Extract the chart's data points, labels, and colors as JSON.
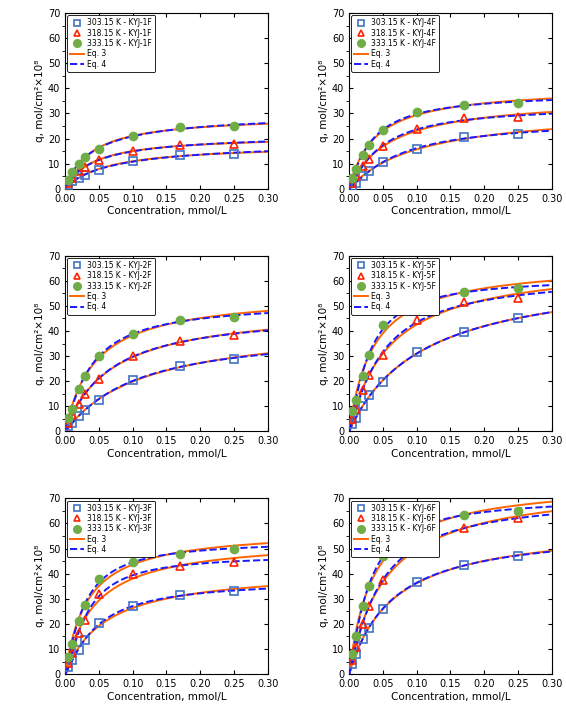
{
  "panels": [
    {
      "label": "KYJ-1F",
      "T303_x": [
        0.005,
        0.01,
        0.02,
        0.03,
        0.05,
        0.1,
        0.17,
        0.25
      ],
      "T303_y": [
        1.5,
        3.0,
        4.5,
        5.5,
        7.5,
        11.0,
        13.5,
        14.0
      ],
      "T318_x": [
        0.005,
        0.01,
        0.02,
        0.03,
        0.05,
        0.1,
        0.17,
        0.25
      ],
      "T318_y": [
        2.5,
        4.5,
        7.0,
        8.5,
        11.5,
        15.0,
        17.5,
        18.0
      ],
      "T333_x": [
        0.005,
        0.01,
        0.02,
        0.03,
        0.05,
        0.1,
        0.17,
        0.25
      ],
      "T333_y": [
        3.5,
        6.5,
        10.0,
        12.5,
        16.0,
        21.0,
        24.5,
        25.0
      ],
      "ylim": [
        0,
        70
      ]
    },
    {
      "label": "KYJ-4F",
      "T303_x": [
        0.005,
        0.01,
        0.02,
        0.03,
        0.05,
        0.1,
        0.17,
        0.25
      ],
      "T303_y": [
        1.0,
        2.5,
        5.0,
        7.0,
        10.5,
        16.0,
        20.5,
        22.0
      ],
      "T318_x": [
        0.005,
        0.01,
        0.02,
        0.03,
        0.05,
        0.1,
        0.17,
        0.25
      ],
      "T318_y": [
        2.5,
        5.0,
        9.0,
        12.0,
        17.0,
        24.0,
        28.0,
        28.5
      ],
      "T333_x": [
        0.005,
        0.01,
        0.02,
        0.03,
        0.05,
        0.1,
        0.17,
        0.25
      ],
      "T333_y": [
        4.5,
        8.0,
        13.5,
        17.5,
        23.5,
        30.5,
        33.5,
        34.0
      ],
      "ylim": [
        0,
        70
      ]
    },
    {
      "label": "KYJ-2F",
      "T303_x": [
        0.005,
        0.01,
        0.02,
        0.03,
        0.05,
        0.1,
        0.17,
        0.25
      ],
      "T303_y": [
        2.0,
        3.5,
        6.0,
        8.5,
        12.5,
        20.5,
        26.0,
        29.0
      ],
      "T318_x": [
        0.005,
        0.01,
        0.02,
        0.03,
        0.05,
        0.1,
        0.17,
        0.25
      ],
      "T318_y": [
        3.5,
        6.5,
        11.0,
        15.0,
        21.0,
        30.0,
        36.0,
        38.5
      ],
      "T333_x": [
        0.005,
        0.01,
        0.02,
        0.03,
        0.05,
        0.1,
        0.17,
        0.25
      ],
      "T333_y": [
        5.5,
        9.0,
        17.0,
        22.0,
        30.0,
        39.0,
        44.5,
        45.5
      ],
      "ylim": [
        0,
        70
      ]
    },
    {
      "label": "KYJ-5F",
      "T303_x": [
        0.005,
        0.01,
        0.02,
        0.03,
        0.05,
        0.1,
        0.17,
        0.25
      ],
      "T303_y": [
        3.0,
        5.5,
        10.0,
        14.5,
        19.5,
        31.5,
        39.5,
        45.0
      ],
      "T318_x": [
        0.005,
        0.01,
        0.02,
        0.03,
        0.05,
        0.1,
        0.17,
        0.25
      ],
      "T318_y": [
        5.0,
        9.0,
        16.5,
        22.5,
        30.5,
        44.5,
        51.5,
        53.0
      ],
      "T333_x": [
        0.005,
        0.01,
        0.02,
        0.03,
        0.05,
        0.1,
        0.17,
        0.25
      ],
      "T333_y": [
        8.0,
        12.5,
        22.0,
        30.5,
        42.5,
        50.5,
        55.5,
        57.0
      ],
      "ylim": [
        0,
        70
      ]
    },
    {
      "label": "KYJ-3F",
      "T303_x": [
        0.005,
        0.01,
        0.02,
        0.03,
        0.05,
        0.1,
        0.17,
        0.25
      ],
      "T303_y": [
        3.0,
        5.5,
        9.5,
        13.5,
        20.5,
        27.0,
        31.5,
        33.0
      ],
      "T318_x": [
        0.005,
        0.01,
        0.02,
        0.03,
        0.05,
        0.1,
        0.17,
        0.25
      ],
      "T318_y": [
        4.5,
        8.5,
        16.5,
        21.5,
        32.0,
        40.0,
        43.0,
        44.5
      ],
      "T333_x": [
        0.005,
        0.01,
        0.02,
        0.03,
        0.05,
        0.1,
        0.17,
        0.25
      ],
      "T333_y": [
        7.0,
        12.0,
        21.0,
        27.5,
        38.0,
        44.5,
        48.0,
        50.0
      ],
      "ylim": [
        0,
        70
      ]
    },
    {
      "label": "KYJ-6F",
      "T303_x": [
        0.005,
        0.01,
        0.02,
        0.03,
        0.05,
        0.1,
        0.17,
        0.25
      ],
      "T303_y": [
        4.0,
        8.0,
        14.0,
        18.5,
        26.0,
        36.5,
        43.5,
        47.0
      ],
      "T318_x": [
        0.005,
        0.01,
        0.02,
        0.03,
        0.05,
        0.1,
        0.17,
        0.25
      ],
      "T318_y": [
        5.5,
        11.0,
        20.0,
        27.0,
        37.5,
        51.0,
        58.0,
        62.0
      ],
      "T333_x": [
        0.005,
        0.01,
        0.02,
        0.03,
        0.05,
        0.1,
        0.17,
        0.25
      ],
      "T333_y": [
        8.0,
        15.0,
        27.0,
        35.0,
        47.0,
        59.0,
        63.5,
        65.0
      ],
      "ylim": [
        0,
        70
      ]
    }
  ],
  "color_303": "#4472C4",
  "color_318": "#FF2200",
  "color_333": "#70AD47",
  "color_eq3": "#FF6600",
  "color_eq4": "#1A1AFF",
  "xlabel": "Concentration, mmol/L",
  "ylabel": "q, mol/cm²×10⁸",
  "xlim": [
    0.0,
    0.3
  ],
  "xticks": [
    0.0,
    0.05,
    0.1,
    0.15,
    0.2,
    0.25,
    0.3
  ]
}
